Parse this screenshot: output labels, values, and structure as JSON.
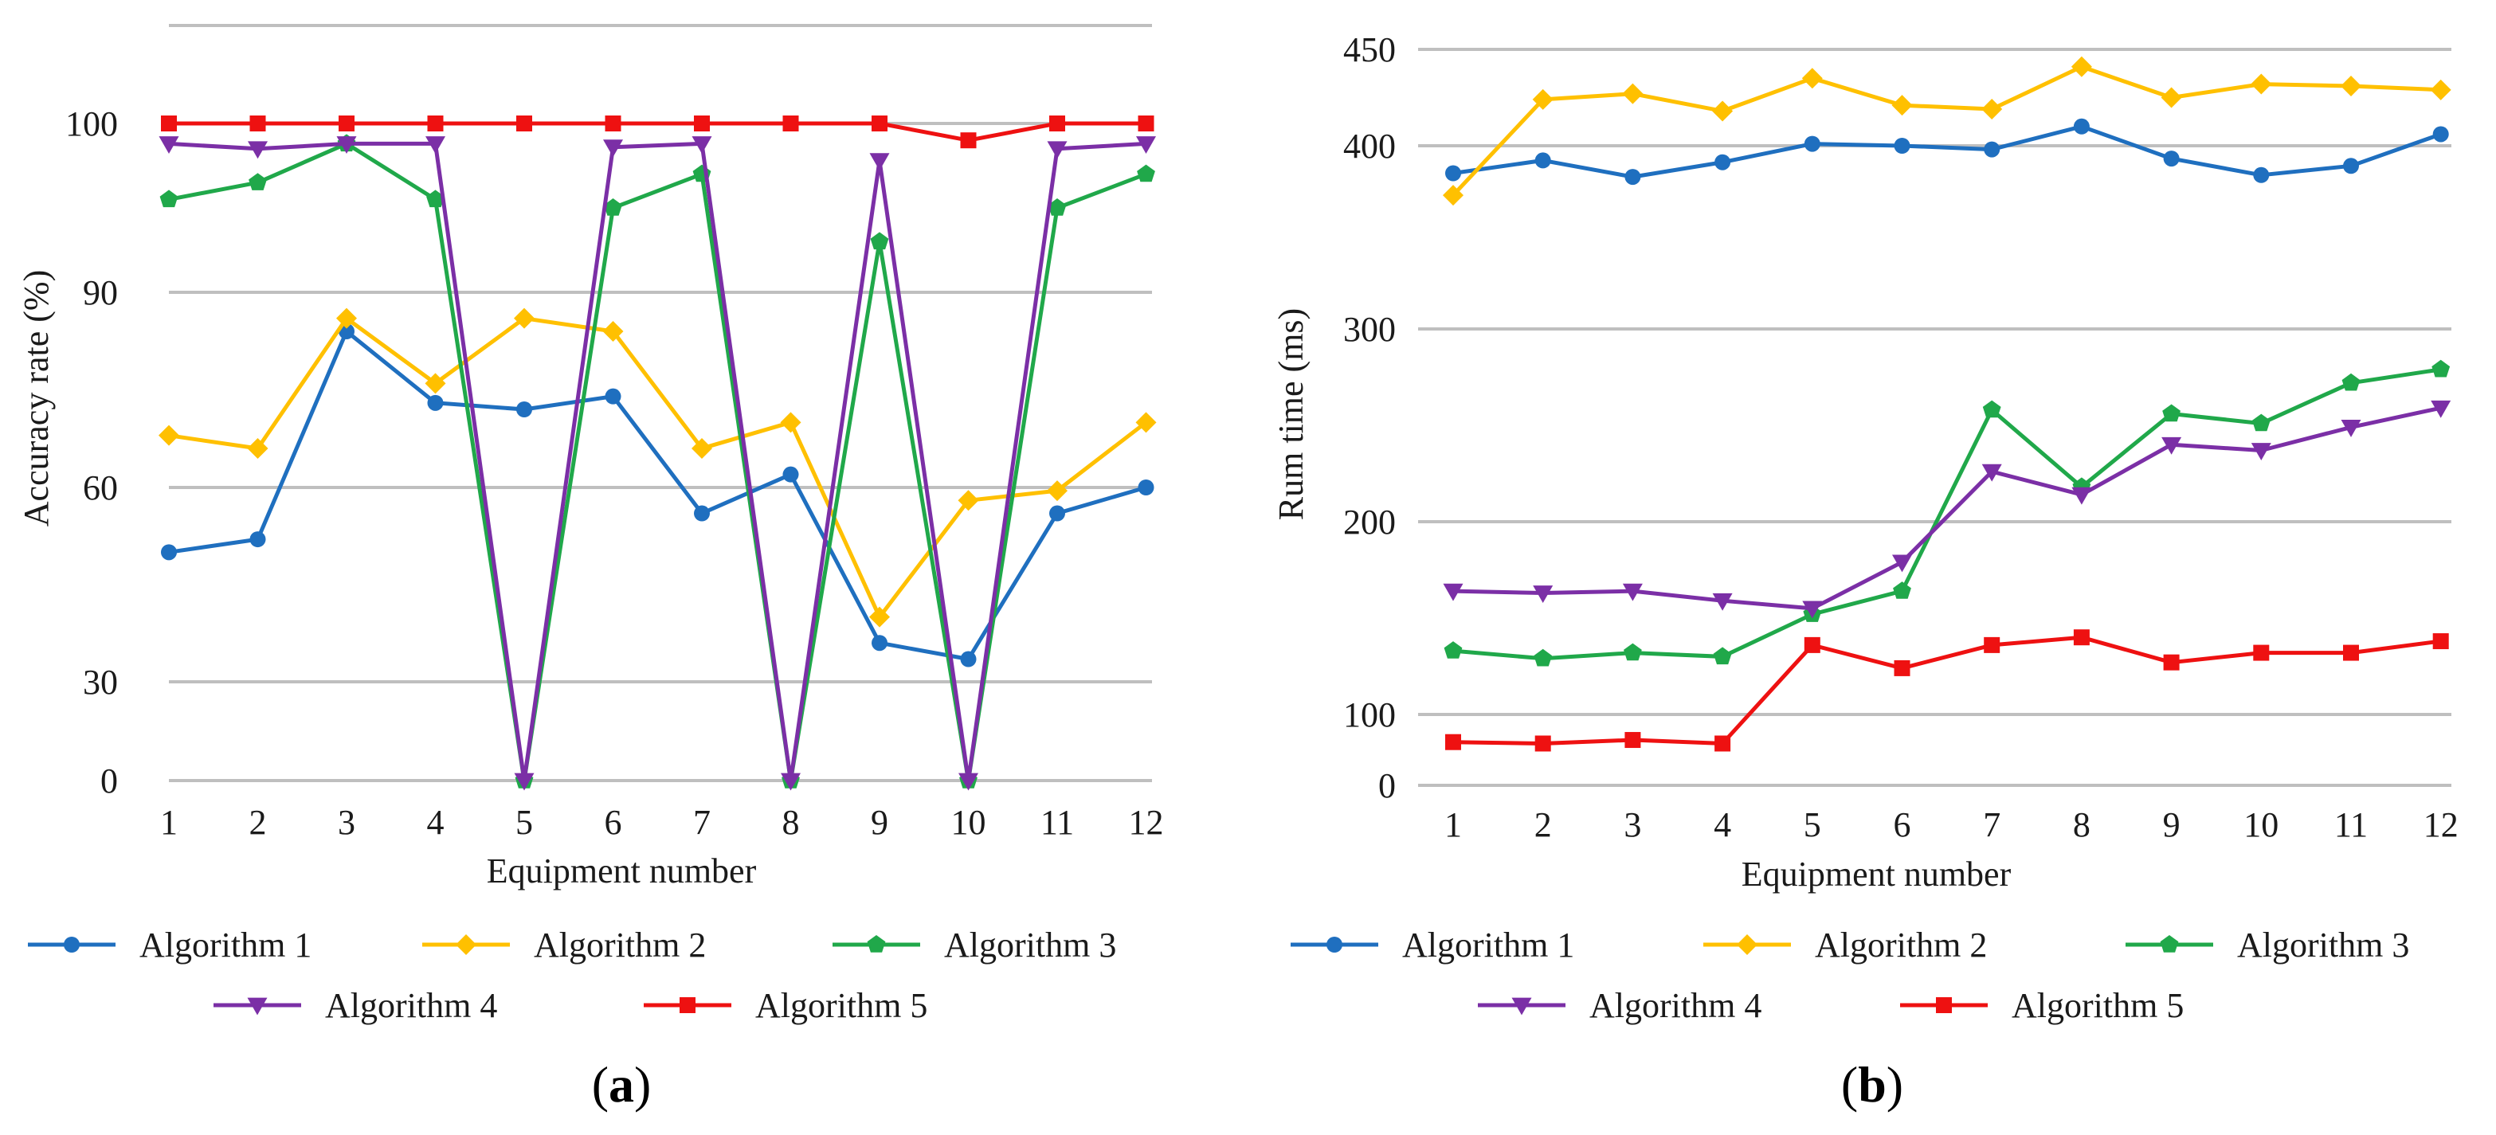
{
  "figure": {
    "panel_a_label_open": "(",
    "panel_a_label_letter": "a",
    "panel_a_label_close": ")",
    "panel_b_label_open": "(",
    "panel_b_label_letter": "b",
    "panel_b_label_close": ")"
  },
  "chart_data": [
    {
      "id": "a",
      "type": "line",
      "title": "",
      "xlabel": "Equipment number",
      "ylabel": "Accuracy rate (%)",
      "categories": [
        "1",
        "2",
        "3",
        "4",
        "5",
        "6",
        "7",
        "8",
        "9",
        "10",
        "11",
        "12"
      ],
      "y_ticks": [
        {
          "value": 0,
          "label": "0"
        },
        {
          "value": 30,
          "label": "30"
        },
        {
          "value": 60,
          "label": "60"
        },
        {
          "value": 90,
          "label": "90"
        },
        {
          "value": 100,
          "label": "100"
        }
      ],
      "ylim": [
        0,
        103
      ],
      "legend_position": "bottom",
      "series": [
        {
          "name": "Algorithm 1",
          "color": "#1f6fbf",
          "marker": "circle",
          "values": [
            50,
            52,
            84,
            73,
            72,
            74,
            56,
            62,
            36,
            33.5,
            56,
            60
          ]
        },
        {
          "name": "Algorithm 2",
          "color": "#ffc000",
          "marker": "diamond",
          "values": [
            68,
            66,
            86,
            76,
            86,
            84,
            66,
            70,
            40,
            58,
            59.5,
            70
          ]
        },
        {
          "name": "Algorithm 3",
          "color": "#20a84a",
          "marker": "pentagon",
          "values": [
            95.5,
            96.5,
            98.8,
            95.5,
            0,
            95,
            97,
            0,
            93,
            0,
            95,
            97
          ]
        },
        {
          "name": "Algorithm 4",
          "color": "#7b2fa6",
          "marker": "triangle-down",
          "values": [
            98.8,
            98.5,
            98.8,
            98.8,
            0,
            98.6,
            98.8,
            0,
            97.8,
            0,
            98.5,
            98.8
          ]
        },
        {
          "name": "Algorithm 5",
          "color": "#ee1111",
          "marker": "square",
          "values": [
            100,
            100,
            100,
            100,
            100,
            100,
            100,
            100,
            100,
            99,
            100,
            100
          ]
        }
      ]
    },
    {
      "id": "b",
      "type": "line",
      "title": "",
      "xlabel": "Equipment number",
      "ylabel": "Rum time (ms)",
      "categories": [
        "1",
        "2",
        "3",
        "4",
        "5",
        "6",
        "7",
        "8",
        "9",
        "10",
        "11",
        "12"
      ],
      "y_ticks": [
        {
          "value": 0,
          "label": "0"
        },
        {
          "value": 100,
          "label": "100"
        },
        {
          "value": 200,
          "label": "200"
        },
        {
          "value": 300,
          "label": "300"
        },
        {
          "value": 400,
          "label": "400"
        },
        {
          "value": 450,
          "label": "450"
        }
      ],
      "ylim": [
        0,
        450
      ],
      "legend_position": "bottom",
      "series": [
        {
          "name": "Algorithm 1",
          "color": "#1f6fbf",
          "marker": "circle",
          "values": [
            385,
            392,
            383,
            391,
            401,
            400,
            398,
            410,
            393,
            384,
            389,
            406
          ]
        },
        {
          "name": "Algorithm 2",
          "color": "#ffc000",
          "marker": "diamond",
          "values": [
            373,
            424,
            427,
            418,
            435,
            421,
            419,
            441,
            425,
            432,
            431,
            429
          ]
        },
        {
          "name": "Algorithm 3",
          "color": "#20a84a",
          "marker": "pentagon",
          "values": [
            133,
            129,
            132,
            130,
            152,
            164,
            258,
            218,
            256,
            251,
            272,
            279
          ]
        },
        {
          "name": "Algorithm 4",
          "color": "#7b2fa6",
          "marker": "triangle-down",
          "values": [
            164,
            163,
            164,
            159,
            155,
            179,
            226,
            214,
            240,
            237,
            249,
            259
          ]
        },
        {
          "name": "Algorithm 5",
          "color": "#ee1111",
          "marker": "square",
          "values": [
            61,
            59,
            64,
            59,
            136,
            124,
            136,
            140,
            127,
            132,
            132,
            138
          ]
        }
      ]
    }
  ]
}
